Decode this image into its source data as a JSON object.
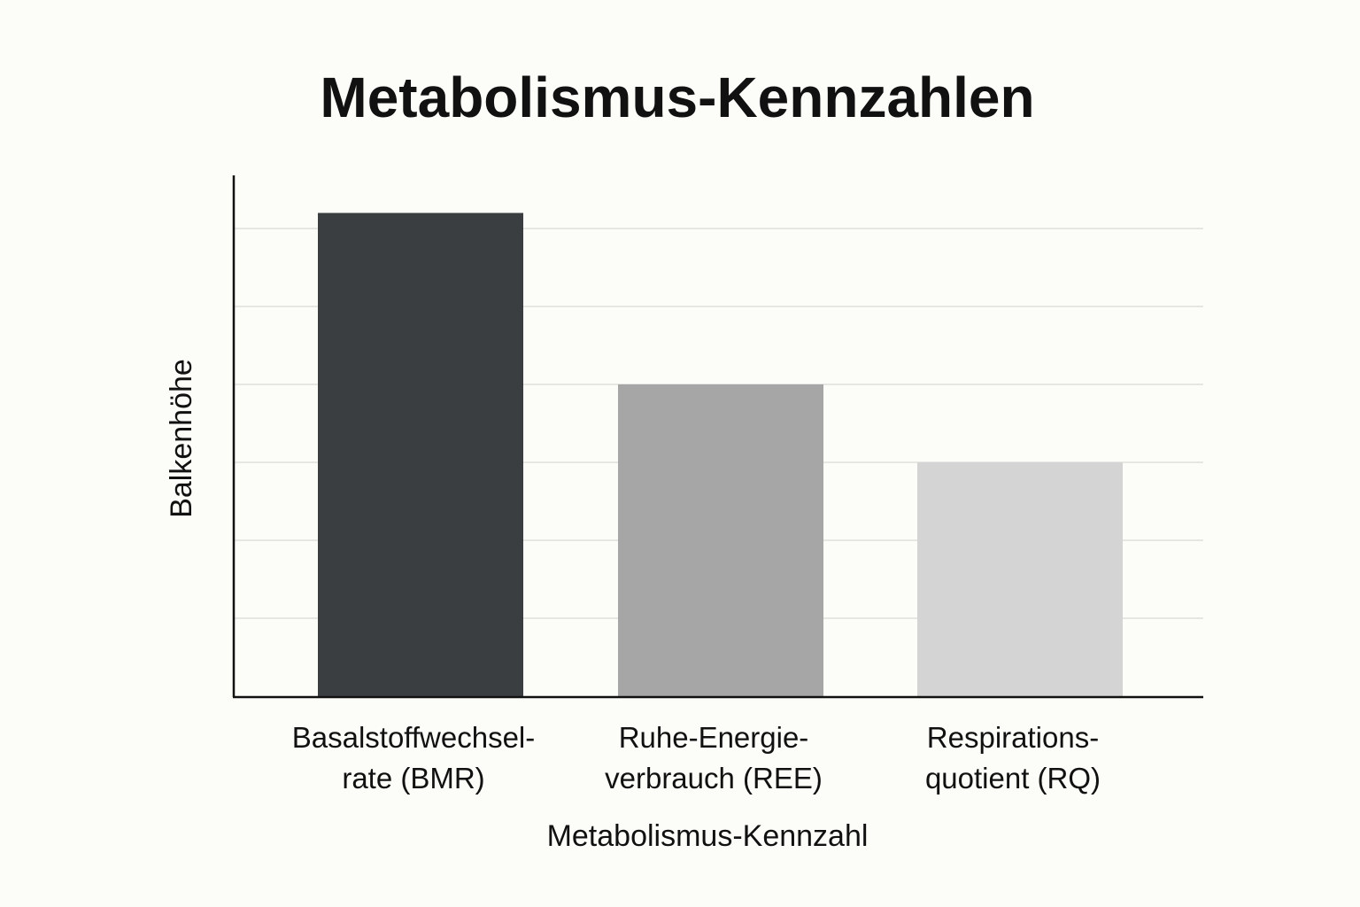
{
  "chart_data": {
    "type": "bar",
    "title": "Metabolismus-Kennzahlen",
    "xlabel": "Metabolismus-Kennzahl",
    "ylabel": "Balkenhöhe",
    "categories": [
      [
        "Basalstoffwechsel-",
        "rate (BMR)"
      ],
      [
        "Ruhe-Energie-",
        "verbrauch (REE)"
      ],
      [
        "Respirations-",
        "quotient (RQ)"
      ]
    ],
    "values": [
      6.2,
      4.0,
      3.0
    ],
    "ylim": [
      0,
      6.5
    ],
    "grid": true,
    "gridlines": [
      1,
      2,
      3,
      4,
      5,
      6
    ],
    "colors": [
      "#3b3e41",
      "#a6a6a6",
      "#d4d4d4"
    ],
    "ticks_shown": false,
    "legend": "none"
  }
}
